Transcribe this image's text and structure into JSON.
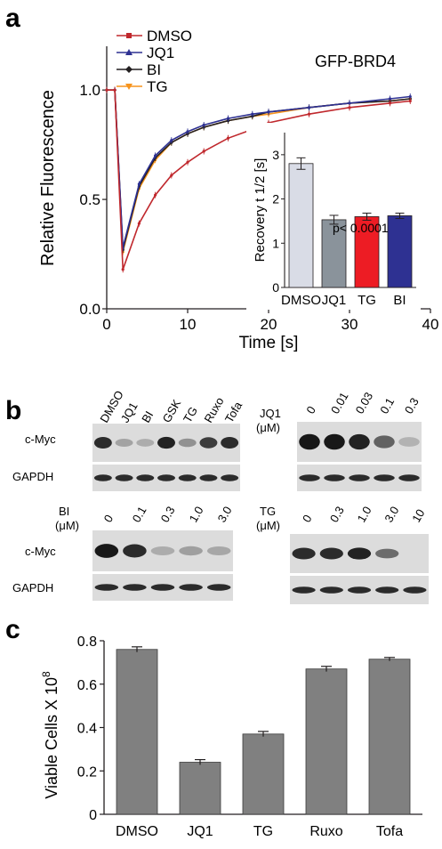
{
  "panels": {
    "a": {
      "letter": "a",
      "title": "GFP-BRD4",
      "legend": [
        "DMSO",
        "JQ1",
        "BI",
        "TG"
      ],
      "colors": {
        "DMSO": "#c0282d",
        "JQ1": "#2e3192",
        "BI": "#231f20",
        "TG": "#f7941d"
      },
      "xlabel": "Time [s]",
      "ylabel": "Relative Fluorescence",
      "xticks": [
        "0",
        "10",
        "20",
        "30",
        "40"
      ],
      "yticks": [
        "0.0",
        "0.5",
        "1.0"
      ],
      "inset": {
        "ylabel": "Recovery t 1/2 [s]",
        "yticks": [
          "0",
          "1",
          "2",
          "3"
        ],
        "annotation": "p< 0.0001",
        "categories": [
          "DMSO",
          "JQ1",
          "TG",
          "BI"
        ]
      }
    },
    "b": {
      "letter": "b",
      "blot1": {
        "lanes": [
          "DMSO",
          "JQ1",
          "BI",
          "GSK",
          "TG",
          "Ruxo",
          "Tofa"
        ],
        "rows": [
          "c-Myc",
          "GAPDH"
        ]
      },
      "blot2": {
        "drug": "JQ1",
        "unit": "(μM)",
        "doses": [
          "0",
          "0.01",
          "0.03",
          "0.1",
          "0.3"
        ]
      },
      "blot3": {
        "drug": "BI",
        "unit": "(μM)",
        "doses": [
          "0",
          "0.1",
          "0.3",
          "1.0",
          "3.0"
        ],
        "rows": [
          "c-Myc",
          "GAPDH"
        ]
      },
      "blot4": {
        "drug": "TG",
        "unit": "(μM)",
        "doses": [
          "0",
          "0.3",
          "1.0",
          "3.0",
          "10"
        ]
      }
    },
    "c": {
      "letter": "c",
      "ylabel": "Viable Cells X 10",
      "ylabel_exp": "8",
      "yticks": [
        "0",
        "0.2",
        "0.4",
        "0.6",
        "0.8"
      ]
    }
  },
  "chart_data": [
    {
      "type": "line",
      "title": "GFP-BRD4",
      "xlabel": "Time [s]",
      "ylabel": "Relative Fluorescence",
      "xlim": [
        0,
        40
      ],
      "ylim": [
        0,
        1.2
      ],
      "series": [
        {
          "name": "DMSO",
          "x": [
            0,
            1,
            2,
            4,
            6,
            8,
            10,
            12,
            15,
            18,
            20,
            25,
            30,
            35,
            37.5
          ],
          "y": [
            1.0,
            1.0,
            0.18,
            0.39,
            0.52,
            0.61,
            0.67,
            0.72,
            0.78,
            0.82,
            0.85,
            0.89,
            0.92,
            0.94,
            0.95
          ]
        },
        {
          "name": "JQ1",
          "x": [
            0,
            1,
            2,
            4,
            6,
            8,
            10,
            12,
            15,
            18,
            20,
            25,
            30,
            35,
            37.5
          ],
          "y": [
            1.0,
            1.0,
            0.28,
            0.57,
            0.7,
            0.77,
            0.81,
            0.84,
            0.87,
            0.89,
            0.9,
            0.92,
            0.94,
            0.96,
            0.97
          ]
        },
        {
          "name": "BI",
          "x": [
            0,
            1,
            2,
            4,
            6,
            8,
            10,
            12,
            15,
            18,
            20,
            25,
            30,
            35,
            37.5
          ],
          "y": [
            1.0,
            1.0,
            0.27,
            0.56,
            0.69,
            0.76,
            0.8,
            0.83,
            0.86,
            0.88,
            0.9,
            0.92,
            0.94,
            0.95,
            0.96
          ]
        },
        {
          "name": "TG",
          "x": [
            0,
            1,
            2,
            4,
            6,
            8,
            10,
            12,
            15,
            18,
            20,
            25,
            30,
            35,
            37.5
          ],
          "y": [
            1.0,
            1.0,
            0.26,
            0.55,
            0.68,
            0.76,
            0.8,
            0.83,
            0.86,
            0.88,
            0.89,
            0.92,
            0.94,
            0.95,
            0.96
          ]
        }
      ]
    },
    {
      "type": "bar",
      "ylabel": "Recovery t 1/2 [s]",
      "ylim": [
        0,
        3.5
      ],
      "categories": [
        "DMSO",
        "JQ1",
        "TG",
        "BI"
      ],
      "values": [
        2.8,
        1.53,
        1.6,
        1.62
      ],
      "errors": [
        0.13,
        0.1,
        0.08,
        0.06
      ],
      "colors": [
        "#d9dce6",
        "#8a939b",
        "#ed1c24",
        "#2e3192"
      ],
      "annotation": "p< 0.0001"
    },
    {
      "type": "bar",
      "ylabel": "Viable Cells X 10^8",
      "ylim": [
        0,
        0.8
      ],
      "categories": [
        "DMSO",
        "JQ1",
        "TG",
        "Ruxo",
        "Tofa"
      ],
      "values": [
        0.76,
        0.24,
        0.37,
        0.67,
        0.715
      ],
      "errors": [
        0.012,
        0.012,
        0.012,
        0.012,
        0.008
      ],
      "color": "#808080"
    }
  ]
}
